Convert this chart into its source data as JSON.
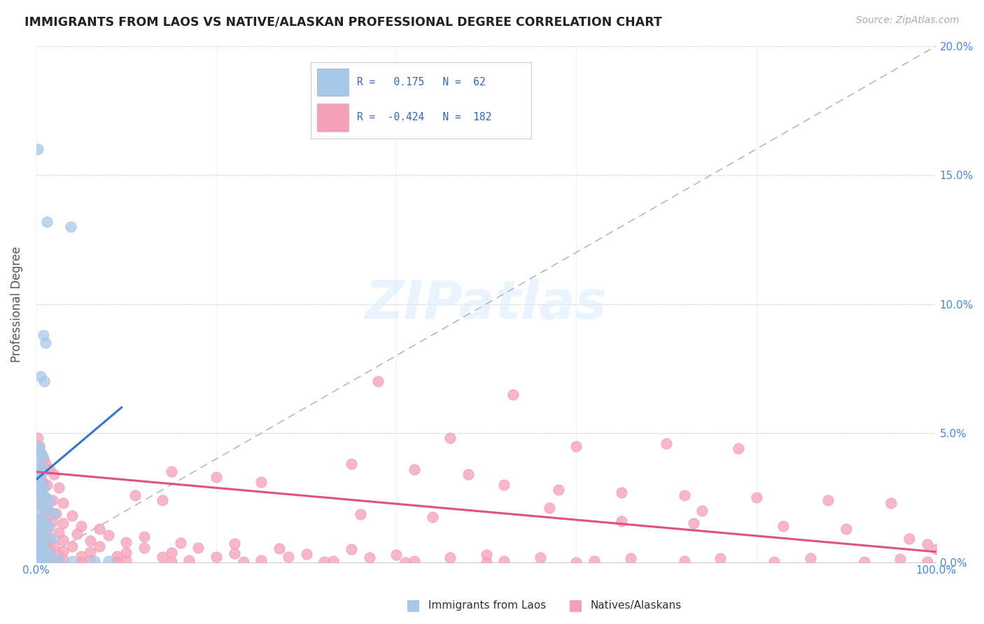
{
  "title": "IMMIGRANTS FROM LAOS VS NATIVE/ALASKAN PROFESSIONAL DEGREE CORRELATION CHART",
  "source": "Source: ZipAtlas.com",
  "ylabel": "Professional Degree",
  "watermark": "ZIPatlas",
  "legend_blue_r": "0.175",
  "legend_blue_n": "62",
  "legend_pink_r": "-0.424",
  "legend_pink_n": "182",
  "xlim": [
    0.0,
    100.0
  ],
  "ylim": [
    0.0,
    20.0
  ],
  "xticks": [
    0,
    20,
    40,
    60,
    80,
    100
  ],
  "yticks": [
    0,
    5,
    10,
    15,
    20
  ],
  "blue_color": "#a8c8e8",
  "pink_color": "#f4a0b8",
  "blue_line_color": "#3377cc",
  "pink_line_color": "#e05080",
  "blue_scatter": [
    [
      0.2,
      16.0
    ],
    [
      1.2,
      13.2
    ],
    [
      3.8,
      13.0
    ],
    [
      0.8,
      8.8
    ],
    [
      1.0,
      8.5
    ],
    [
      0.5,
      7.2
    ],
    [
      0.9,
      7.0
    ],
    [
      0.3,
      4.5
    ],
    [
      0.4,
      4.3
    ],
    [
      0.6,
      4.2
    ],
    [
      0.7,
      4.1
    ],
    [
      0.2,
      3.8
    ],
    [
      0.5,
      3.7
    ],
    [
      0.6,
      3.6
    ],
    [
      0.8,
      3.5
    ],
    [
      0.1,
      3.3
    ],
    [
      0.3,
      3.2
    ],
    [
      0.4,
      3.1
    ],
    [
      0.6,
      3.0
    ],
    [
      0.9,
      2.9
    ],
    [
      0.2,
      2.8
    ],
    [
      0.4,
      2.7
    ],
    [
      0.7,
      2.6
    ],
    [
      1.0,
      2.5
    ],
    [
      1.5,
      2.4
    ],
    [
      0.3,
      2.3
    ],
    [
      0.5,
      2.2
    ],
    [
      0.8,
      2.1
    ],
    [
      1.2,
      2.0
    ],
    [
      2.0,
      1.9
    ],
    [
      0.2,
      1.8
    ],
    [
      0.4,
      1.7
    ],
    [
      0.6,
      1.6
    ],
    [
      0.9,
      1.5
    ],
    [
      1.4,
      1.4
    ],
    [
      0.3,
      1.3
    ],
    [
      0.5,
      1.2
    ],
    [
      0.7,
      1.1
    ],
    [
      1.1,
      1.0
    ],
    [
      1.8,
      0.9
    ],
    [
      0.2,
      0.8
    ],
    [
      0.4,
      0.7
    ],
    [
      0.6,
      0.6
    ],
    [
      0.9,
      0.5
    ],
    [
      1.3,
      0.4
    ],
    [
      0.3,
      0.35
    ],
    [
      0.7,
      0.3
    ],
    [
      1.5,
      0.25
    ],
    [
      0.2,
      0.2
    ],
    [
      0.5,
      0.18
    ],
    [
      0.8,
      0.15
    ],
    [
      1.2,
      0.12
    ],
    [
      2.5,
      0.1
    ],
    [
      0.3,
      0.08
    ],
    [
      0.6,
      0.06
    ],
    [
      4.0,
      0.05
    ],
    [
      0.1,
      0.03
    ],
    [
      0.4,
      0.02
    ],
    [
      0.7,
      0.01
    ],
    [
      1.8,
      0.005
    ],
    [
      6.5,
      0.05
    ],
    [
      8.0,
      0.04
    ]
  ],
  "pink_scatter": [
    [
      0.2,
      4.8
    ],
    [
      0.3,
      4.5
    ],
    [
      0.5,
      4.2
    ],
    [
      0.8,
      4.0
    ],
    [
      1.0,
      3.8
    ],
    [
      1.5,
      3.6
    ],
    [
      2.0,
      3.4
    ],
    [
      0.4,
      3.3
    ],
    [
      0.7,
      3.1
    ],
    [
      1.2,
      3.0
    ],
    [
      2.5,
      2.9
    ],
    [
      0.3,
      2.8
    ],
    [
      0.6,
      2.6
    ],
    [
      1.0,
      2.5
    ],
    [
      1.8,
      2.4
    ],
    [
      3.0,
      2.3
    ],
    [
      0.4,
      2.2
    ],
    [
      0.8,
      2.1
    ],
    [
      1.4,
      2.0
    ],
    [
      2.2,
      1.9
    ],
    [
      4.0,
      1.8
    ],
    [
      0.5,
      1.7
    ],
    [
      1.0,
      1.6
    ],
    [
      1.8,
      1.55
    ],
    [
      3.0,
      1.5
    ],
    [
      5.0,
      1.4
    ],
    [
      7.0,
      1.3
    ],
    [
      0.6,
      1.25
    ],
    [
      1.2,
      1.2
    ],
    [
      2.5,
      1.15
    ],
    [
      4.5,
      1.1
    ],
    [
      8.0,
      1.05
    ],
    [
      12.0,
      1.0
    ],
    [
      0.3,
      0.95
    ],
    [
      0.8,
      0.9
    ],
    [
      1.5,
      0.88
    ],
    [
      3.0,
      0.85
    ],
    [
      6.0,
      0.82
    ],
    [
      10.0,
      0.78
    ],
    [
      16.0,
      0.75
    ],
    [
      22.0,
      0.72
    ],
    [
      0.4,
      0.7
    ],
    [
      1.0,
      0.68
    ],
    [
      2.0,
      0.65
    ],
    [
      4.0,
      0.62
    ],
    [
      7.0,
      0.6
    ],
    [
      12.0,
      0.57
    ],
    [
      18.0,
      0.55
    ],
    [
      27.0,
      0.52
    ],
    [
      35.0,
      0.5
    ],
    [
      0.3,
      0.48
    ],
    [
      0.8,
      0.46
    ],
    [
      1.5,
      0.44
    ],
    [
      3.0,
      0.42
    ],
    [
      6.0,
      0.4
    ],
    [
      10.0,
      0.38
    ],
    [
      15.0,
      0.36
    ],
    [
      22.0,
      0.34
    ],
    [
      30.0,
      0.32
    ],
    [
      40.0,
      0.3
    ],
    [
      50.0,
      0.28
    ],
    [
      0.5,
      0.27
    ],
    [
      1.2,
      0.26
    ],
    [
      2.5,
      0.25
    ],
    [
      5.0,
      0.24
    ],
    [
      9.0,
      0.23
    ],
    [
      14.0,
      0.22
    ],
    [
      20.0,
      0.21
    ],
    [
      28.0,
      0.2
    ],
    [
      37.0,
      0.19
    ],
    [
      46.0,
      0.18
    ],
    [
      56.0,
      0.17
    ],
    [
      66.0,
      0.16
    ],
    [
      76.0,
      0.15
    ],
    [
      86.0,
      0.14
    ],
    [
      96.0,
      0.13
    ],
    [
      0.3,
      0.12
    ],
    [
      0.8,
      0.11
    ],
    [
      1.5,
      0.1
    ],
    [
      3.0,
      0.09
    ],
    [
      6.0,
      0.08
    ],
    [
      10.0,
      0.07
    ],
    [
      17.0,
      0.065
    ],
    [
      25.0,
      0.06
    ],
    [
      33.0,
      0.055
    ],
    [
      42.0,
      0.05
    ],
    [
      52.0,
      0.045
    ],
    [
      62.0,
      0.04
    ],
    [
      72.0,
      0.035
    ],
    [
      82.0,
      0.03
    ],
    [
      92.0,
      0.025
    ],
    [
      99.0,
      0.02
    ],
    [
      0.2,
      0.015
    ],
    [
      1.0,
      0.012
    ],
    [
      2.5,
      0.01
    ],
    [
      5.0,
      0.008
    ],
    [
      9.0,
      0.007
    ],
    [
      15.0,
      0.006
    ],
    [
      23.0,
      0.005
    ],
    [
      32.0,
      0.004
    ],
    [
      41.0,
      0.003
    ],
    [
      50.0,
      0.002
    ],
    [
      60.0,
      0.001
    ],
    [
      38.0,
      7.0
    ],
    [
      53.0,
      6.5
    ],
    [
      46.0,
      4.8
    ],
    [
      60.0,
      4.5
    ],
    [
      70.0,
      4.6
    ],
    [
      78.0,
      4.4
    ],
    [
      35.0,
      3.8
    ],
    [
      42.0,
      3.6
    ],
    [
      48.0,
      3.4
    ],
    [
      15.0,
      3.5
    ],
    [
      20.0,
      3.3
    ],
    [
      25.0,
      3.1
    ],
    [
      52.0,
      3.0
    ],
    [
      58.0,
      2.8
    ],
    [
      65.0,
      2.7
    ],
    [
      72.0,
      2.6
    ],
    [
      80.0,
      2.5
    ],
    [
      88.0,
      2.4
    ],
    [
      95.0,
      2.3
    ],
    [
      11.0,
      2.6
    ],
    [
      14.0,
      2.4
    ],
    [
      57.0,
      2.1
    ],
    [
      74.0,
      2.0
    ],
    [
      36.0,
      1.85
    ],
    [
      44.0,
      1.75
    ],
    [
      65.0,
      1.6
    ],
    [
      73.0,
      1.5
    ],
    [
      83.0,
      1.4
    ],
    [
      90.0,
      1.3
    ],
    [
      97.0,
      0.9
    ],
    [
      99.0,
      0.7
    ],
    [
      100.0,
      0.5
    ]
  ],
  "blue_trend_x": [
    0.0,
    9.5
  ],
  "blue_trend_y": [
    3.2,
    6.0
  ],
  "pink_trend_x": [
    0.0,
    100.0
  ],
  "pink_trend_y": [
    3.5,
    0.4
  ],
  "dashed_line_x": [
    0.0,
    100.0
  ],
  "dashed_line_y": [
    0.0,
    20.0
  ]
}
